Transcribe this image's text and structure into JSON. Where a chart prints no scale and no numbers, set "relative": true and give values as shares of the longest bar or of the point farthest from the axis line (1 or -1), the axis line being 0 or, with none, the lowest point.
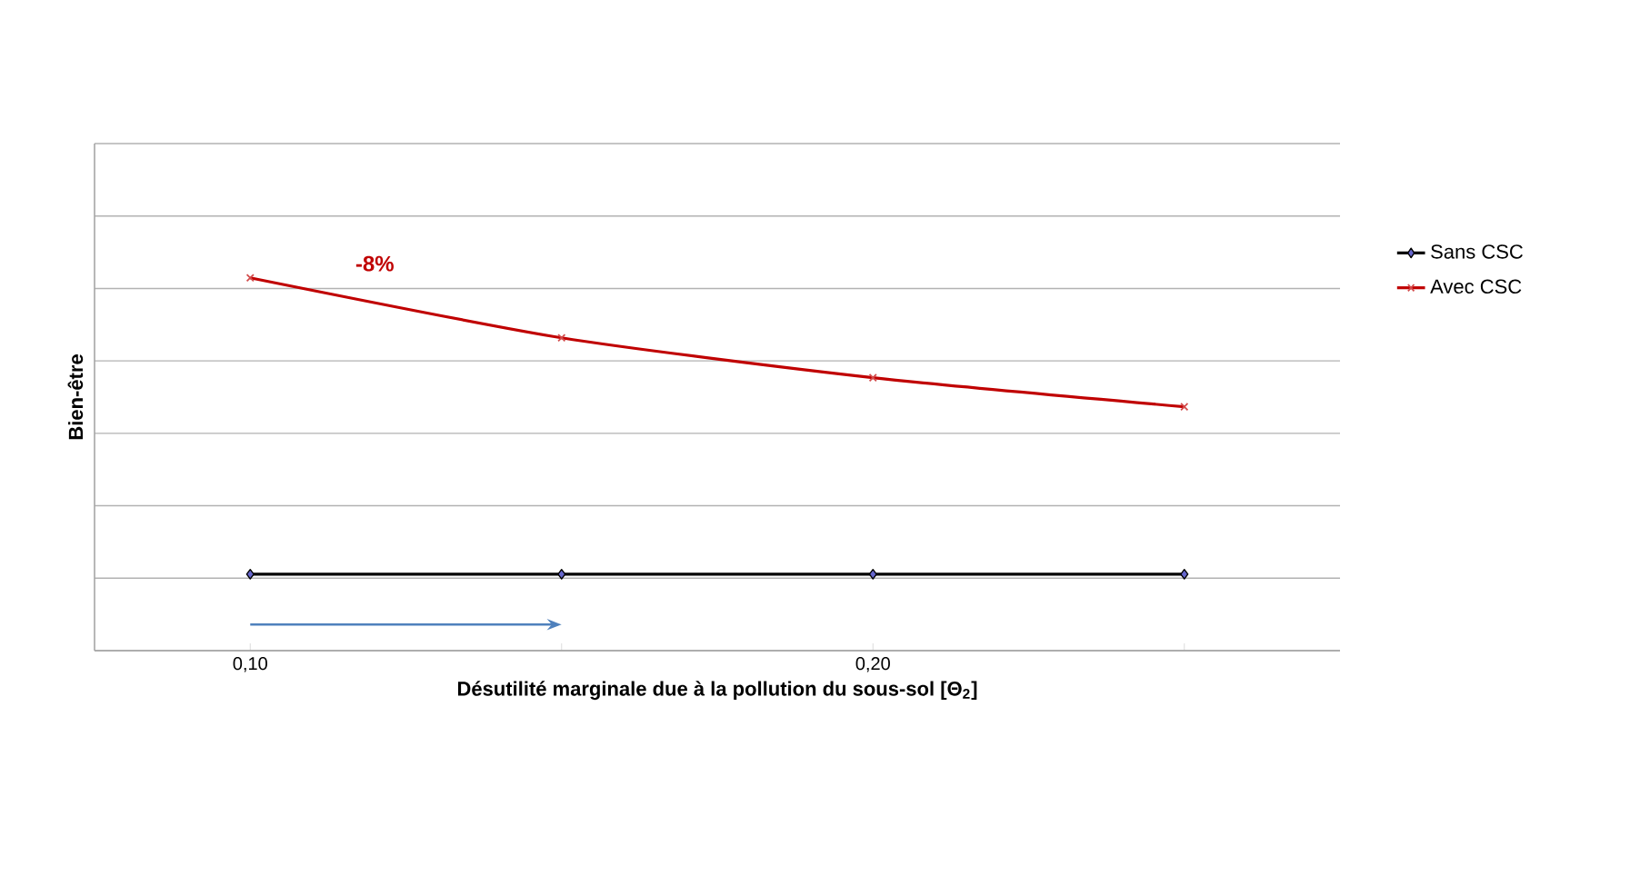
{
  "chart_data": {
    "type": "line",
    "xlabel": "Désutilité marginale due à la pollution du sous-sol [Θ$_{2}$]",
    "ylabel": "Bien-être",
    "x": [
      0.1,
      0.15,
      0.2,
      0.25
    ],
    "relative": true,
    "xlim": [
      0.075,
      0.275
    ],
    "xticks": [
      {
        "value": 0.1,
        "label": "0,10"
      },
      {
        "value": 0.15,
        "label": null
      },
      {
        "value": 0.2,
        "label": "0,20"
      },
      {
        "value": 0.25,
        "label": null
      }
    ],
    "series": [
      {
        "name": "Sans CSC",
        "color": "#000000",
        "marker": "diamond",
        "values": [
          0.205,
          0.205,
          0.205,
          0.205
        ]
      },
      {
        "name": "Avec CSC",
        "color": "#c00000",
        "marker": "cross",
        "values": [
          1,
          0.839,
          0.732,
          0.654
        ]
      }
    ],
    "annotations": [
      "-8%"
    ],
    "grid": "y",
    "legend": "right",
    "line_style": "solid"
  }
}
